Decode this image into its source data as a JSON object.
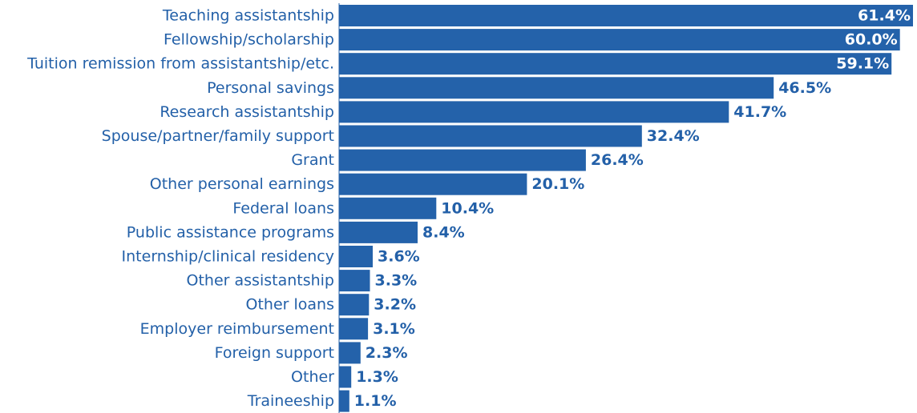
{
  "colors": {
    "bar": "#2462aa",
    "label": "#2360a8",
    "value_outside": "#2360a8",
    "value_inside": "#ffffff",
    "axis": "#2462aa"
  },
  "chart_data": {
    "type": "bar",
    "orientation": "horizontal",
    "title": "",
    "xlabel": "",
    "ylabel": "",
    "value_suffix": "%",
    "xlim": [
      0,
      61.4
    ],
    "grid": false,
    "legend": "none",
    "categories": [
      "Teaching assistantship",
      "Fellowship/scholarship",
      "Tuition remission from assistantship/etc.",
      "Personal savings",
      "Research assistantship",
      "Spouse/partner/family support",
      "Grant",
      "Other personal earnings",
      "Federal loans",
      "Public assistance programs",
      "Internship/clinical residency",
      "Other assistantship",
      "Other loans",
      "Employer reimbursement",
      "Foreign support",
      "Other",
      "Traineeship"
    ],
    "values": [
      61.4,
      60.0,
      59.1,
      46.5,
      41.7,
      32.4,
      26.4,
      20.1,
      10.4,
      8.4,
      3.6,
      3.3,
      3.2,
      3.1,
      2.3,
      1.3,
      1.1
    ],
    "value_labels": [
      "61.4%",
      "60.0%",
      "59.1%",
      "46.5%",
      "41.7%",
      "32.4%",
      "26.4%",
      "20.1%",
      "10.4%",
      "8.4%",
      "3.6%",
      "3.3%",
      "3.2%",
      "3.1%",
      "2.3%",
      "1.3%",
      "1.1%"
    ],
    "inside_label_threshold": 55
  }
}
